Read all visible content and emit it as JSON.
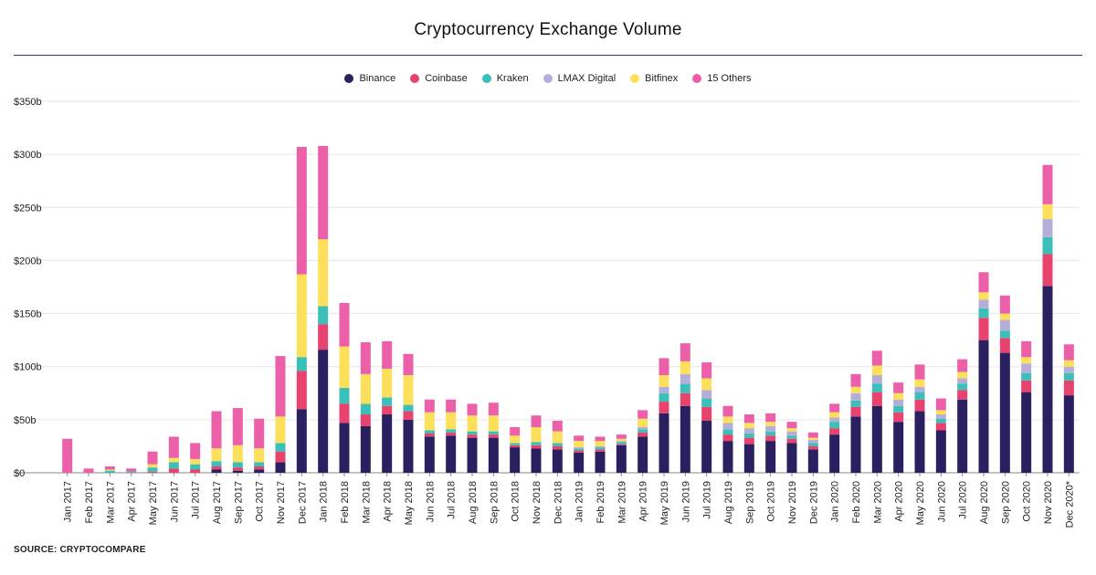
{
  "title": "Cryptocurrency Exchange Volume",
  "source": "SOURCE: CRYPTOCOMPARE",
  "chart_data": {
    "type": "bar",
    "stacked": true,
    "title": "Cryptocurrency Exchange Volume",
    "xlabel": "",
    "ylabel": "",
    "ylim": [
      0,
      350
    ],
    "y_ticks": [
      0,
      50,
      100,
      150,
      200,
      250,
      300,
      350
    ],
    "y_tick_labels": [
      "$0",
      "$50b",
      "$100b",
      "$150b",
      "$200b",
      "$250b",
      "$300b",
      "$350b"
    ],
    "grid": "horizontal",
    "legend_position": "top-center",
    "categories": [
      "Jan 2017",
      "Feb 2017",
      "Mar 2017",
      "Apr 2017",
      "May 2017",
      "Jun 2017",
      "Jul 2017",
      "Aug 2017",
      "Sep 2017",
      "Oct 2017",
      "Nov 2017",
      "Dec 2017",
      "Jan 2018",
      "Feb 2018",
      "Mar 2018",
      "Apr 2018",
      "May 2018",
      "Jun 2018",
      "Jul 2018",
      "Aug 2018",
      "Sep 2018",
      "Oct 2018",
      "Nov 2018",
      "Dec 2018",
      "Jan 2019",
      "Feb 2019",
      "Mar 2019",
      "Apr 2019",
      "May 2019",
      "Jun 2019",
      "Jul 2019",
      "Aug 2019",
      "Sep 2019",
      "Oct 2019",
      "Nov 2019",
      "Dec 2019",
      "Jan 2020",
      "Feb 2020",
      "Mar 2020",
      "Apr 2020",
      "May 2020",
      "Jun 2020",
      "Jul 2020",
      "Aug 2020",
      "Sep 2020",
      "Oct 2020",
      "Nov 2020",
      "Dec 2020*"
    ],
    "series": [
      {
        "name": "Binance",
        "color": "#2a2060",
        "values": [
          0,
          0,
          0,
          0,
          0,
          0,
          0,
          3,
          2,
          3,
          10,
          60,
          116,
          47,
          44,
          55,
          50,
          34,
          35,
          33,
          33,
          24,
          23,
          22,
          19,
          20,
          26,
          34,
          56,
          63,
          49,
          30,
          27,
          30,
          28,
          22,
          36,
          53,
          63,
          48,
          58,
          40,
          69,
          125,
          113,
          76,
          176,
          73
        ]
      },
      {
        "name": "Coinbase",
        "color": "#e8426e",
        "values": [
          0,
          0,
          0,
          0,
          1,
          4,
          3,
          3,
          3,
          3,
          10,
          36,
          24,
          18,
          11,
          8,
          8,
          3,
          3,
          3,
          3,
          2,
          3,
          3,
          2,
          2,
          1,
          4,
          11,
          12,
          13,
          6,
          6,
          5,
          4,
          3,
          6,
          9,
          13,
          9,
          11,
          7,
          9,
          21,
          14,
          11,
          30,
          14
        ]
      },
      {
        "name": "Kraken",
        "color": "#3bbfb8",
        "values": [
          0,
          0,
          2,
          1,
          4,
          6,
          5,
          5,
          5,
          4,
          8,
          13,
          17,
          15,
          10,
          8,
          6,
          3,
          3,
          3,
          3,
          2,
          3,
          3,
          2,
          2,
          2,
          3,
          8,
          9,
          8,
          5,
          4,
          4,
          3,
          3,
          6,
          6,
          8,
          6,
          7,
          4,
          6,
          9,
          7,
          7,
          16,
          7
        ]
      },
      {
        "name": "LMAX Digital",
        "color": "#b5aed8",
        "values": [
          0,
          0,
          0,
          0,
          0,
          0,
          0,
          0,
          0,
          0,
          0,
          0,
          0,
          0,
          0,
          0,
          0,
          0,
          0,
          0,
          0,
          0,
          0,
          0,
          1,
          1,
          1,
          2,
          6,
          9,
          8,
          6,
          5,
          5,
          4,
          3,
          4,
          7,
          8,
          6,
          5,
          4,
          5,
          8,
          10,
          9,
          17,
          6
        ]
      },
      {
        "name": "Bitfinex",
        "color": "#fcdf5b",
        "values": [
          0,
          0,
          1,
          0,
          3,
          4,
          5,
          12,
          16,
          13,
          25,
          78,
          63,
          39,
          28,
          27,
          28,
          17,
          16,
          15,
          15,
          7,
          14,
          11,
          6,
          5,
          2,
          8,
          11,
          12,
          11,
          6,
          5,
          4,
          3,
          2,
          5,
          6,
          9,
          6,
          7,
          4,
          6,
          7,
          6,
          6,
          14,
          6
        ]
      },
      {
        "name": "15 Others",
        "color": "#ec5fa9",
        "values": [
          32,
          4,
          3,
          3,
          12,
          20,
          15,
          35,
          35,
          28,
          57,
          120,
          88,
          41,
          30,
          26,
          20,
          12,
          12,
          11,
          12,
          8,
          11,
          10,
          5,
          4,
          4,
          8,
          16,
          17,
          15,
          10,
          8,
          8,
          6,
          5,
          8,
          12,
          14,
          10,
          14,
          11,
          12,
          19,
          17,
          15,
          37,
          15
        ]
      }
    ]
  }
}
